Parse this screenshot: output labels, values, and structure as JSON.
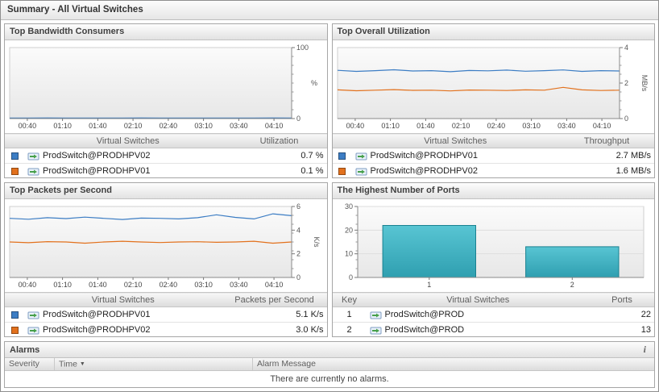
{
  "header": {
    "title": "Summary - All Virtual Switches"
  },
  "panels": {
    "bandwidth": {
      "title": "Top Bandwidth Consumers",
      "table": {
        "col_name": "Virtual Switches",
        "col_value": "Utilization",
        "rows": [
          {
            "color": "#3c7dc4",
            "name": "ProdSwitch@PRODHPV02",
            "value": "0.7 %"
          },
          {
            "color": "#e2711d",
            "name": "ProdSwitch@PRODHPV01",
            "value": "0.1 %"
          }
        ]
      }
    },
    "utilization": {
      "title": "Top Overall Utilization",
      "table": {
        "col_name": "Virtual Switches",
        "col_value": "Throughput",
        "rows": [
          {
            "color": "#3c7dc4",
            "name": "ProdSwitch@PRODHPV01",
            "value": "2.7 MB/s"
          },
          {
            "color": "#e2711d",
            "name": "ProdSwitch@PRODHPV02",
            "value": "1.6 MB/s"
          }
        ]
      }
    },
    "packets": {
      "title": "Top Packets per Second",
      "table": {
        "col_name": "Virtual Switches",
        "col_value": "Packets per Second",
        "rows": [
          {
            "color": "#3c7dc4",
            "name": "ProdSwitch@PRODHPV01",
            "value": "5.1 K/s"
          },
          {
            "color": "#e2711d",
            "name": "ProdSwitch@PRODHPV02",
            "value": "3.0 K/s"
          }
        ]
      }
    },
    "ports": {
      "title": "The Highest Number of Ports",
      "table": {
        "col_key": "Key",
        "col_name": "Virtual Switches",
        "col_value": "Ports",
        "rows": [
          {
            "key": "1",
            "name": "ProdSwitch@PROD",
            "value": "22"
          },
          {
            "key": "2",
            "name": "ProdSwitch@PROD",
            "value": "13"
          }
        ]
      }
    }
  },
  "alarms": {
    "title": "Alarms",
    "info_icon": "i",
    "col_severity": "Severity",
    "col_time": "Time",
    "sort_arrow": "▼",
    "col_message": "Alarm Message",
    "empty_message": "There are currently no alarms."
  },
  "chart_data": [
    {
      "type": "line",
      "title": "Top Bandwidth Consumers",
      "x_ticks": [
        "00:40",
        "01:10",
        "01:40",
        "02:10",
        "02:40",
        "03:10",
        "03:40",
        "04:10"
      ],
      "ylabel": "%",
      "ylim": [
        0,
        100
      ],
      "y_ticks": [
        0,
        100
      ],
      "y_axis_side": "right",
      "legend_position": "table-below",
      "series": [
        {
          "name": "ProdSwitch@PRODHPV02",
          "color": "#3c7dc4",
          "values": [
            0.8,
            0.7,
            0.9,
            0.7,
            0.8,
            0.7,
            0.7,
            0.9,
            0.7,
            0.8,
            0.7,
            0.7,
            0.8,
            0.7,
            0.9,
            0.7
          ]
        },
        {
          "name": "ProdSwitch@PRODHPV01",
          "color": "#e2711d",
          "values": [
            0.1,
            0.1,
            0.2,
            0.1,
            0.1,
            0.1,
            0.2,
            0.1,
            0.1,
            0.1,
            0.1,
            0.2,
            0.1,
            0.1,
            0.1,
            0.1
          ]
        }
      ]
    },
    {
      "type": "line",
      "title": "Top Overall Utilization",
      "x_ticks": [
        "00:40",
        "01:10",
        "01:40",
        "02:10",
        "02:40",
        "03:10",
        "03:40",
        "04:10"
      ],
      "ylabel": "MB/s",
      "ylim": [
        0,
        4
      ],
      "y_ticks": [
        0,
        2,
        4
      ],
      "y_axis_side": "right",
      "legend_position": "table-below",
      "series": [
        {
          "name": "ProdSwitch@PRODHPV01",
          "color": "#3c7dc4",
          "values": [
            2.72,
            2.66,
            2.7,
            2.75,
            2.68,
            2.7,
            2.64,
            2.71,
            2.69,
            2.73,
            2.67,
            2.7,
            2.74,
            2.66,
            2.7,
            2.68
          ]
        },
        {
          "name": "ProdSwitch@PRODHPV02",
          "color": "#e2711d",
          "values": [
            1.62,
            1.57,
            1.6,
            1.63,
            1.59,
            1.6,
            1.56,
            1.61,
            1.6,
            1.58,
            1.62,
            1.6,
            1.76,
            1.62,
            1.58,
            1.6
          ]
        }
      ]
    },
    {
      "type": "line",
      "title": "Top Packets per Second",
      "x_ticks": [
        "00:40",
        "01:10",
        "01:40",
        "02:10",
        "02:40",
        "03:10",
        "03:40",
        "04:10"
      ],
      "ylabel": "K/s",
      "ylim": [
        0,
        6
      ],
      "y_ticks": [
        0,
        2,
        4,
        6
      ],
      "y_axis_side": "right",
      "legend_position": "table-below",
      "series": [
        {
          "name": "ProdSwitch@PRODHPV01",
          "color": "#3c7dc4",
          "values": [
            5.0,
            4.92,
            5.05,
            4.98,
            5.1,
            5.0,
            4.9,
            5.02,
            5.0,
            4.95,
            5.05,
            5.3,
            5.08,
            4.95,
            5.38,
            5.22
          ]
        },
        {
          "name": "ProdSwitch@PRODHPV02",
          "color": "#e2711d",
          "values": [
            3.0,
            2.94,
            3.03,
            3.0,
            2.9,
            3.0,
            3.06,
            3.0,
            2.95,
            3.0,
            3.02,
            2.97,
            3.0,
            3.06,
            2.9,
            3.0
          ]
        }
      ]
    },
    {
      "type": "bar",
      "title": "The Highest Number of Ports",
      "categories": [
        "1",
        "2"
      ],
      "values": [
        22,
        13
      ],
      "ylim": [
        0,
        30
      ],
      "y_ticks": [
        0,
        10,
        20,
        30
      ],
      "y_axis_side": "left",
      "bar_color_top": "#58c5d3",
      "bar_color": "#2f9fb0",
      "bar_border": "#1a8190"
    }
  ]
}
